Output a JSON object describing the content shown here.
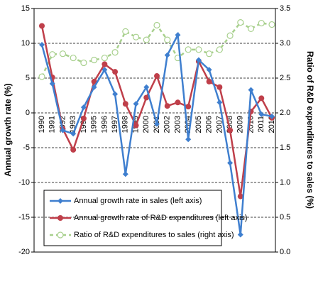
{
  "chart_data": {
    "type": "line",
    "y_label": "Annual growth rate (%)",
    "y2_label": "Ratio of R&D expenditures to sales (%)",
    "categories": [
      "1990",
      "1991",
      "1992",
      "1993",
      "1994",
      "1995",
      "1996",
      "1997",
      "1998",
      "1999",
      "2000",
      "2001",
      "2002",
      "2003",
      "2004",
      "2005",
      "2006",
      "2007",
      "2008",
      "2009",
      "2010",
      "2011",
      "2012"
    ],
    "series": [
      {
        "name": "Annual growth rate in sales (left axis)",
        "color": "#3f7fcf",
        "marker": "diamond",
        "values": [
          9.8,
          4.2,
          -2.5,
          -3,
          0.8,
          3.7,
          6.2,
          2.7,
          -8.8,
          1.3,
          3.7,
          -1.6,
          8.3,
          11.2,
          -3.8,
          7.6,
          6.2,
          1.5,
          -7.2,
          -17.5,
          3.3,
          -0.2,
          -0.5
        ]
      },
      {
        "name": "Annual growth rate of R&D expenditures (left axis)",
        "color": "#bf3f4a",
        "marker": "circle",
        "values": [
          12.5,
          5.1,
          -2.3,
          -5.3,
          -0.8,
          4.5,
          7.0,
          5.9,
          1.3,
          -1.8,
          2.2,
          5.3,
          1.0,
          1.5,
          0.9,
          7.4,
          4.5,
          3.7,
          -2.5,
          -12,
          0.2,
          2.1,
          -0.7
        ]
      },
      {
        "name": "Ratio of R&D expenditures to sales (right axis)",
        "color": "#a8d08d",
        "marker": "hollow-circle",
        "dashed": true,
        "axis": "y2",
        "values": [
          2.52,
          2.84,
          2.85,
          2.79,
          2.72,
          2.76,
          2.79,
          2.87,
          3.17,
          3.09,
          3.05,
          3.26,
          3.05,
          2.79,
          2.91,
          2.91,
          2.85,
          2.91,
          3.11,
          3.3,
          3.21,
          3.29,
          3.27
        ]
      }
    ],
    "ylim": [
      -20,
      15
    ],
    "yticks": [
      -20,
      -15,
      -10,
      -5,
      0,
      5,
      10,
      15
    ],
    "y2lim": [
      0,
      3.5
    ],
    "y2ticks": [
      {
        "value": 0,
        "label": "0.0"
      },
      0.5,
      {
        "value": 1,
        "label": "1.0"
      },
      1.5,
      {
        "value": 2,
        "label": "2.0"
      },
      2.5,
      {
        "value": 3,
        "label": "3.0"
      },
      3.5
    ],
    "grid": true
  }
}
